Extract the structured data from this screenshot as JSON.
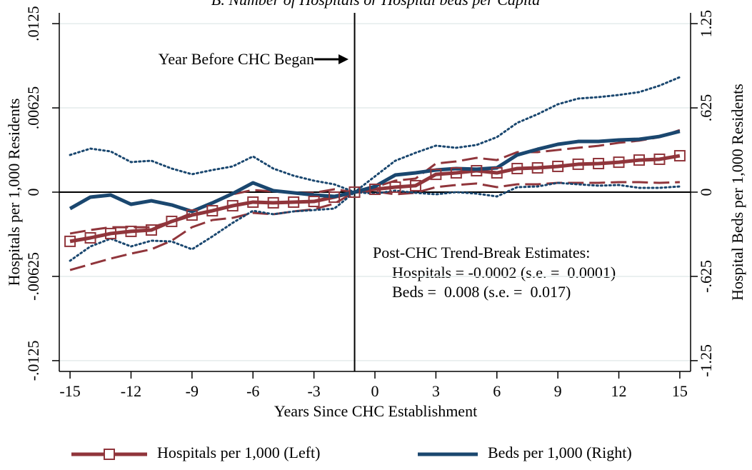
{
  "chart_data": {
    "type": "line",
    "title": "B. Number of Hospitals or Hospital beds per Capita",
    "xlabel": "Years Since CHC Establishment",
    "ylabel": "Hospitals per 1,000 Residents",
    "y2label": "Hospital Beds per 1,000 Residents",
    "x": [
      -15,
      -14,
      -13,
      -12,
      -11,
      -10,
      -9,
      -8,
      -7,
      -6,
      -5,
      -4,
      -3,
      -2,
      -1,
      0,
      1,
      2,
      3,
      4,
      5,
      6,
      7,
      8,
      9,
      10,
      11,
      12,
      13,
      14,
      15
    ],
    "xlim": [
      -15.53,
      15.53
    ],
    "xticks": [
      -15,
      -12,
      -9,
      -6,
      -3,
      0,
      3,
      6,
      9,
      12,
      15
    ],
    "ylim": [
      -0.0133,
      0.0133
    ],
    "yticks": [
      {
        "value": -0.0125,
        "label": "-.0125"
      },
      {
        "value": -0.00625,
        "label": "-.00625"
      },
      0,
      {
        "value": 0.00625,
        "label": ".00625"
      },
      {
        "value": 0.0125,
        "label": ".0125"
      }
    ],
    "y2lim": [
      -1.33,
      1.33
    ],
    "y2ticks": [
      {
        "value": -1.25,
        "label": "-1.25"
      },
      {
        "value": -0.625,
        "label": "-.625"
      },
      0,
      {
        "value": 0.625,
        "label": ".625"
      },
      1.25
    ],
    "grid": true,
    "vline": -1,
    "hline": 0,
    "series": [
      {
        "name": "Hospitals per 1,000 (Left)",
        "color": "#90353b",
        "axis": "y",
        "marker": "square",
        "ci_style": "dash",
        "values": [
          -0.00365,
          -0.00339,
          -0.00307,
          -0.00291,
          -0.00281,
          -0.00217,
          -0.0017,
          -0.00138,
          -0.00101,
          -0.00074,
          -0.00079,
          -0.00074,
          -0.00069,
          -0.00037,
          0,
          0.00021,
          0.00037,
          0.00048,
          0.00132,
          0.00143,
          0.00159,
          0.00143,
          0.00175,
          0.0018,
          0.00191,
          0.00207,
          0.00212,
          0.00222,
          0.00238,
          0.00244,
          0.0027
        ],
        "upper": [
          -0.00307,
          -0.00281,
          -0.0026,
          -0.0026,
          -0.0026,
          -0.00217,
          -0.00154,
          -0.00074,
          -0.00016,
          0.00016,
          5e-05,
          -5e-05,
          -5e-05,
          0.00021,
          0,
          0.00037,
          0.00085,
          0.00101,
          0.00212,
          0.00228,
          0.00254,
          0.00238,
          0.00297,
          0.00297,
          0.00313,
          0.00329,
          0.00344,
          0.00366,
          0.00382,
          0.00408,
          0.00461
        ],
        "lower": [
          -0.00578,
          -0.00535,
          -0.00493,
          -0.00456,
          -0.00424,
          -0.0036,
          -0.0026,
          -0.00207,
          -0.00191,
          -0.00154,
          -0.00164,
          -0.00143,
          -0.00127,
          -0.00085,
          0,
          5e-05,
          -0.00016,
          -5e-05,
          0.00037,
          0.00053,
          0.00064,
          0.00037,
          0.00058,
          0.00058,
          0.00069,
          0.00069,
          0.00069,
          0.00074,
          0.00074,
          0.00069,
          0.00074
        ]
      },
      {
        "name": "Beds per 1,000 (Right)",
        "color": "#1a476f",
        "axis": "y2",
        "marker": "none",
        "ci_style": "dot",
        "values": [
          -0.122,
          -0.037,
          -0.021,
          -0.09,
          -0.064,
          -0.095,
          -0.143,
          -0.08,
          -0.011,
          0.069,
          0.011,
          -0.005,
          -0.021,
          -0.032,
          0,
          0.042,
          0.127,
          0.143,
          0.164,
          0.175,
          0.17,
          0.18,
          0.276,
          0.318,
          0.355,
          0.376,
          0.376,
          0.387,
          0.392,
          0.413,
          0.451
        ],
        "upper": [
          0.276,
          0.323,
          0.302,
          0.223,
          0.233,
          0.175,
          0.133,
          0.164,
          0.191,
          0.265,
          0.175,
          0.122,
          0.085,
          0.058,
          0,
          0.117,
          0.233,
          0.292,
          0.345,
          0.329,
          0.35,
          0.408,
          0.514,
          0.578,
          0.652,
          0.694,
          0.705,
          0.721,
          0.742,
          0.79,
          0.853
        ],
        "lower": [
          -0.509,
          -0.403,
          -0.345,
          -0.403,
          -0.36,
          -0.366,
          -0.424,
          -0.329,
          -0.228,
          -0.138,
          -0.164,
          -0.143,
          -0.133,
          -0.122,
          0,
          -0.011,
          0.011,
          -0.005,
          -0.016,
          0,
          -0.011,
          -0.032,
          0.037,
          0.042,
          0.069,
          0.058,
          0.048,
          0.053,
          0.032,
          0.032,
          0.042
        ]
      }
    ],
    "annotations": [
      "Year Before CHC Began",
      "Post-CHC Trend-Break Estimates:",
      "Hospitals = -0.0002 (s.e. =  0.0001)",
      "Beds =  0.008 (s.e. =  0.017)"
    ]
  }
}
